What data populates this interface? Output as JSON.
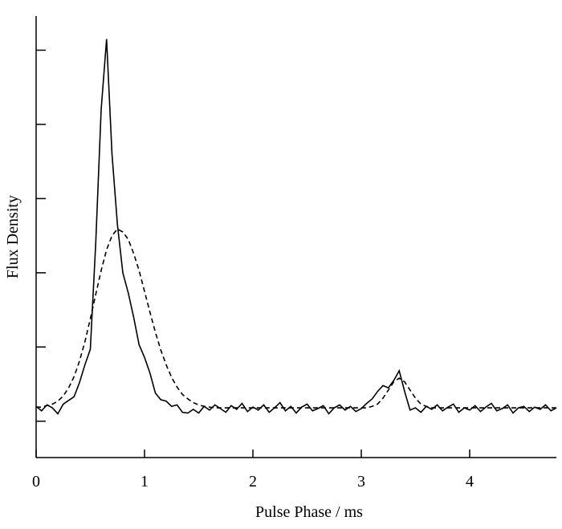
{
  "chart_data": {
    "type": "line",
    "x_label": "Pulse Phase / ms",
    "y_label": "Flux Density",
    "x": [
      0,
      0.05,
      0.1,
      0.15,
      0.2,
      0.25,
      0.3,
      0.35,
      0.4,
      0.45,
      0.5,
      0.55,
      0.6,
      0.65,
      0.7,
      0.75,
      0.8,
      0.85,
      0.9,
      0.95,
      1.0,
      1.05,
      1.1,
      1.15,
      1.2,
      1.25,
      1.3,
      1.35,
      1.4,
      1.45,
      1.5,
      1.55,
      1.6,
      1.65,
      1.7,
      1.75,
      1.8,
      1.85,
      1.9,
      1.95,
      2.0,
      2.05,
      2.1,
      2.15,
      2.2,
      2.25,
      2.3,
      2.35,
      2.4,
      2.45,
      2.5,
      2.55,
      2.6,
      2.65,
      2.7,
      2.75,
      2.8,
      2.85,
      2.9,
      2.95,
      3.0,
      3.05,
      3.1,
      3.15,
      3.2,
      3.25,
      3.3,
      3.35,
      3.4,
      3.45,
      3.5,
      3.55,
      3.6,
      3.65,
      3.7,
      3.75,
      3.8,
      3.85,
      3.9,
      3.95,
      4.0,
      4.05,
      4.1,
      4.15,
      4.2,
      4.25,
      4.3,
      4.35,
      4.4,
      4.45,
      4.5,
      4.55,
      4.6,
      4.65,
      4.7,
      4.75,
      4.8
    ],
    "series": [
      {
        "color": "#000000",
        "dash": false,
        "values": [
          0.2,
          0.14,
          0.22,
          0.18,
          0.1,
          0.23,
          0.28,
          0.33,
          0.52,
          0.76,
          0.97,
          2.4,
          4.2,
          5.15,
          3.6,
          2.65,
          2.0,
          1.73,
          1.4,
          1.03,
          0.86,
          0.65,
          0.38,
          0.29,
          0.27,
          0.2,
          0.22,
          0.12,
          0.11,
          0.16,
          0.11,
          0.2,
          0.15,
          0.22,
          0.17,
          0.12,
          0.21,
          0.16,
          0.24,
          0.13,
          0.19,
          0.15,
          0.22,
          0.12,
          0.18,
          0.25,
          0.14,
          0.2,
          0.11,
          0.19,
          0.23,
          0.14,
          0.17,
          0.21,
          0.1,
          0.18,
          0.22,
          0.15,
          0.2,
          0.13,
          0.17,
          0.24,
          0.3,
          0.4,
          0.48,
          0.45,
          0.55,
          0.68,
          0.4,
          0.15,
          0.18,
          0.12,
          0.2,
          0.16,
          0.22,
          0.14,
          0.19,
          0.23,
          0.12,
          0.18,
          0.15,
          0.21,
          0.13,
          0.19,
          0.24,
          0.14,
          0.17,
          0.22,
          0.11,
          0.18,
          0.2,
          0.13,
          0.19,
          0.16,
          0.22,
          0.14,
          0.18
        ]
      },
      {
        "color": "#000000",
        "dash": true,
        "values": [
          0.19,
          0.19,
          0.21,
          0.23,
          0.27,
          0.34,
          0.45,
          0.6,
          0.81,
          1.07,
          1.38,
          1.71,
          2.03,
          2.31,
          2.5,
          2.59,
          2.55,
          2.45,
          2.26,
          2.03,
          1.75,
          1.47,
          1.2,
          0.96,
          0.76,
          0.59,
          0.46,
          0.36,
          0.3,
          0.25,
          0.22,
          0.2,
          0.19,
          0.18,
          0.18,
          0.18,
          0.18,
          0.18,
          0.18,
          0.18,
          0.18,
          0.18,
          0.18,
          0.18,
          0.18,
          0.18,
          0.18,
          0.18,
          0.18,
          0.18,
          0.18,
          0.18,
          0.18,
          0.18,
          0.18,
          0.18,
          0.18,
          0.18,
          0.18,
          0.18,
          0.18,
          0.18,
          0.2,
          0.23,
          0.31,
          0.42,
          0.53,
          0.58,
          0.53,
          0.42,
          0.31,
          0.23,
          0.2,
          0.18,
          0.18,
          0.18,
          0.18,
          0.18,
          0.18,
          0.18,
          0.18,
          0.18,
          0.18,
          0.18,
          0.18,
          0.18,
          0.18,
          0.18,
          0.18,
          0.18,
          0.18,
          0.18,
          0.18,
          0.18,
          0.18,
          0.18,
          0.18
        ]
      }
    ],
    "xlim": [
      0,
      4.8
    ],
    "xticks": [
      0,
      1,
      2,
      3,
      4
    ],
    "ylim": [
      -0.49,
      5.46
    ],
    "yticks": [
      0,
      1,
      2,
      3,
      4,
      5
    ]
  }
}
